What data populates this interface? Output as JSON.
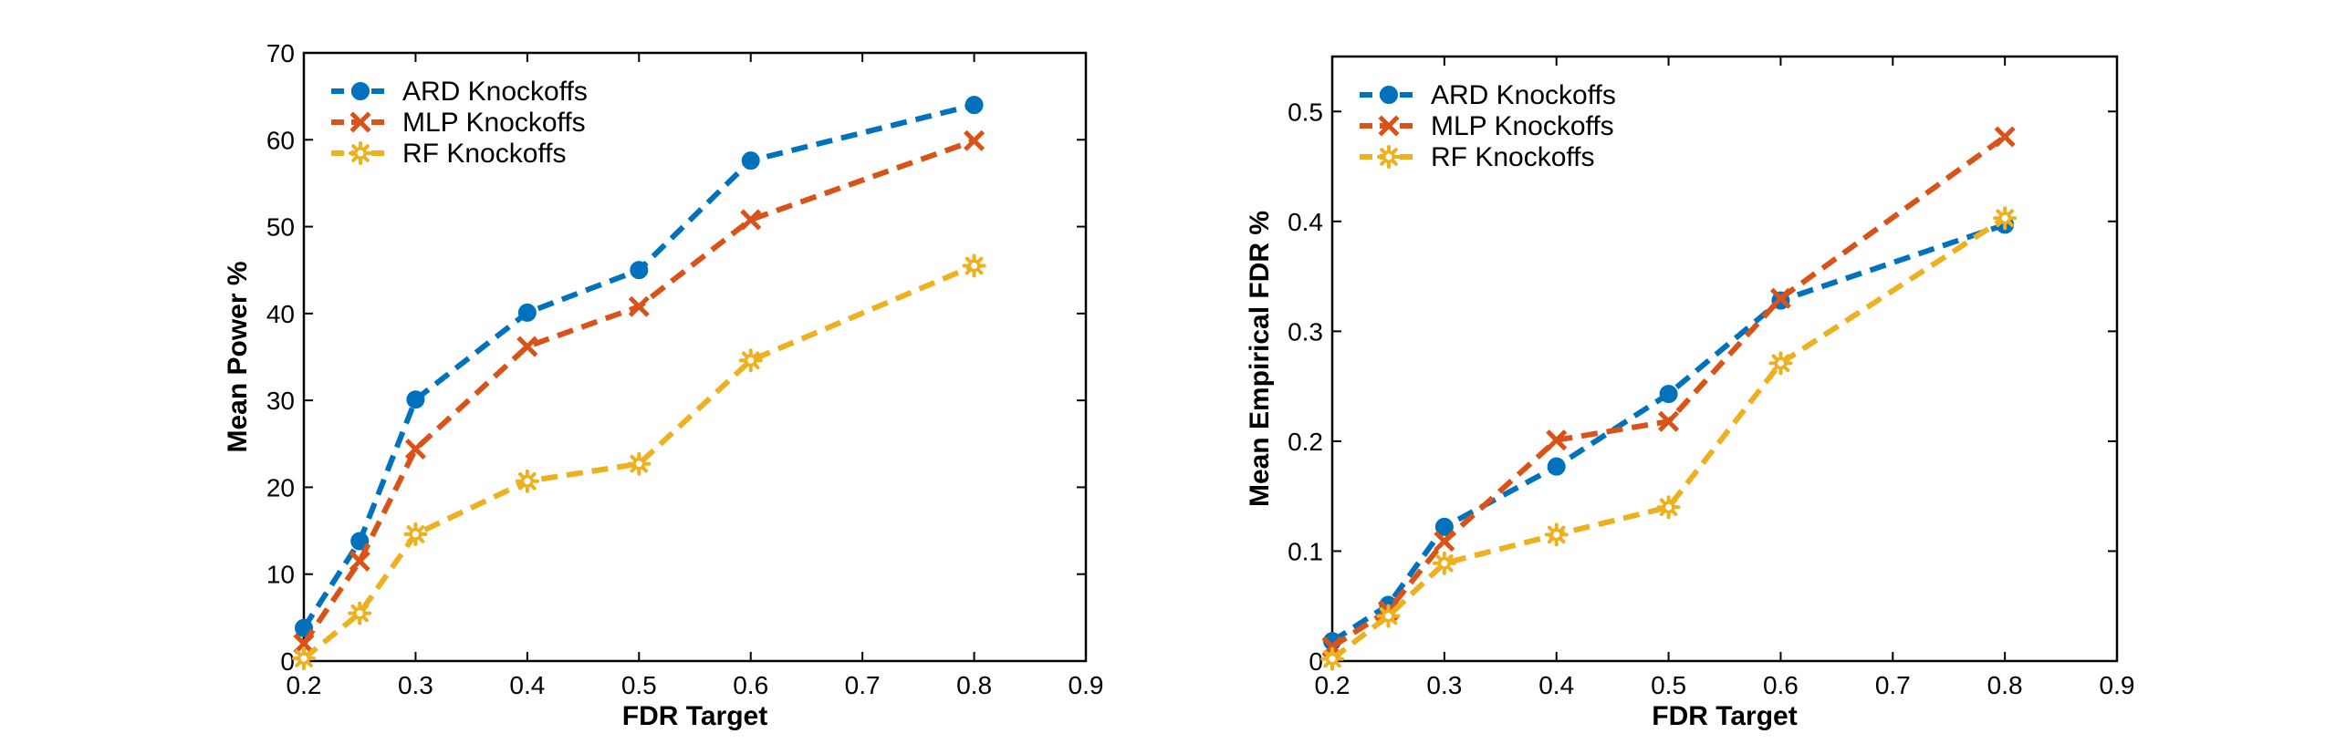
{
  "colors": {
    "ard": "#0072BD",
    "mlp": "#D95319",
    "rf": "#EDB120"
  },
  "chart_data": [
    {
      "type": "line",
      "title": "",
      "xlabel": "FDR Target",
      "ylabel": "Mean Power %",
      "xlim": [
        0.2,
        0.9
      ],
      "ylim": [
        0,
        70
      ],
      "xticks": [
        0.2,
        0.3,
        0.4,
        0.5,
        0.6,
        0.7,
        0.8,
        0.9
      ],
      "xtick_labels": [
        "0.2",
        "0.3",
        "0.4",
        "0.5",
        "0.6",
        "0.7",
        "0.8",
        "0.9"
      ],
      "yticks": [
        0,
        10,
        20,
        30,
        40,
        50,
        60,
        70
      ],
      "ytick_labels": [
        "0",
        "10",
        "20",
        "30",
        "40",
        "50",
        "60",
        "70"
      ],
      "legend_position": "top-left",
      "x": [
        0.2,
        0.25,
        0.3,
        0.4,
        0.5,
        0.6,
        0.8
      ],
      "series": [
        {
          "name": "ARD Knockoffs",
          "key": "ard",
          "marker": "circle",
          "values": [
            3.8,
            13.8,
            30.1,
            40.1,
            45.0,
            57.6,
            64.0
          ]
        },
        {
          "name": "MLP Knockoffs",
          "key": "mlp",
          "marker": "x",
          "values": [
            2.0,
            11.5,
            24.4,
            36.2,
            40.8,
            50.8,
            59.9
          ]
        },
        {
          "name": "RF Knockoffs",
          "key": "rf",
          "marker": "gear",
          "values": [
            0.3,
            5.5,
            14.6,
            20.7,
            22.7,
            34.6,
            45.5
          ]
        }
      ]
    },
    {
      "type": "line",
      "title": "",
      "xlabel": "FDR Target",
      "ylabel": "Mean Empirical FDR %",
      "xlim": [
        0.2,
        0.9
      ],
      "ylim": [
        0,
        0.55
      ],
      "xticks": [
        0.2,
        0.3,
        0.4,
        0.5,
        0.6,
        0.7,
        0.8,
        0.9
      ],
      "xtick_labels": [
        "0.2",
        "0.3",
        "0.4",
        "0.5",
        "0.6",
        "0.7",
        "0.8",
        "0.9"
      ],
      "yticks": [
        0,
        0.1,
        0.2,
        0.3,
        0.4,
        0.5
      ],
      "ytick_labels": [
        "0",
        "0.1",
        "0.2",
        "0.3",
        "0.4",
        "0.5"
      ],
      "legend_position": "top-left",
      "x": [
        0.2,
        0.25,
        0.3,
        0.4,
        0.5,
        0.6,
        0.8
      ],
      "series": [
        {
          "name": "ARD Knockoffs",
          "key": "ard",
          "marker": "circle",
          "values": [
            0.018,
            0.051,
            0.122,
            0.177,
            0.243,
            0.328,
            0.397
          ]
        },
        {
          "name": "MLP Knockoffs",
          "key": "mlp",
          "marker": "x",
          "values": [
            0.013,
            0.046,
            0.109,
            0.201,
            0.218,
            0.33,
            0.477
          ]
        },
        {
          "name": "RF Knockoffs",
          "key": "rf",
          "marker": "gear",
          "values": [
            0.002,
            0.041,
            0.089,
            0.115,
            0.14,
            0.271,
            0.403
          ]
        }
      ]
    }
  ]
}
